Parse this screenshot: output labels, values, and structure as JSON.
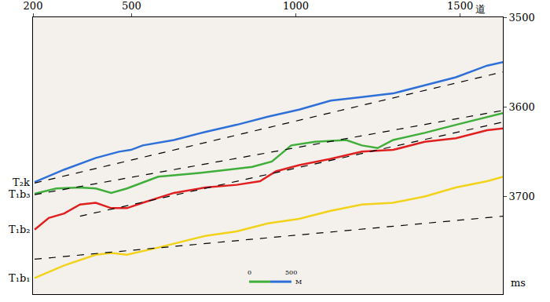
{
  "chart_data": {
    "type": "line",
    "x_label": "道",
    "y_label": "ms",
    "xlim": [
      200,
      1630
    ],
    "xticks": [
      200,
      500,
      1000,
      1500
    ],
    "ylim": [
      3809,
      3500
    ],
    "yticks": [
      3500,
      3600,
      3700
    ],
    "grid": false,
    "legend": false,
    "scale_bar": {
      "labels": [
        "0",
        "500"
      ],
      "unit": "M"
    },
    "series": [
      {
        "name": "T₂k",
        "color": "#2e6fd8",
        "line_style": "solid",
        "x": [
          205,
          295,
          391,
          462,
          498,
          534,
          629,
          724,
          820,
          915,
          1010,
          1106,
          1201,
          1296,
          1392,
          1487,
          1582,
          1630
        ],
        "values": [
          3684,
          3670,
          3657,
          3650,
          3648,
          3643,
          3637,
          3628,
          3620,
          3611,
          3603,
          3593,
          3589,
          3585,
          3576,
          3567,
          3554,
          3550
        ]
      },
      {
        "name": "T₁b₃",
        "color": "#3fae3a",
        "line_style": "solid",
        "x": [
          205,
          271,
          343,
          391,
          438,
          486,
          581,
          700,
          796,
          867,
          927,
          986,
          1058,
          1153,
          1201,
          1249,
          1296,
          1392,
          1487,
          1582,
          1630
        ],
        "values": [
          3697,
          3691,
          3690,
          3691,
          3696,
          3691,
          3678,
          3674,
          3670,
          3667,
          3661,
          3643,
          3639,
          3637,
          3643,
          3646,
          3637,
          3629,
          3620,
          3611,
          3607
        ]
      },
      {
        "name": "T₁b₂",
        "color": "#e02020",
        "line_style": "solid",
        "x": [
          205,
          248,
          295,
          343,
          391,
          438,
          486,
          534,
          629,
          724,
          820,
          891,
          939,
          1010,
          1106,
          1201,
          1296,
          1392,
          1487,
          1582,
          1630
        ],
        "values": [
          3737,
          3724,
          3719,
          3709,
          3707,
          3713,
          3713,
          3707,
          3696,
          3690,
          3687,
          3683,
          3672,
          3665,
          3658,
          3650,
          3648,
          3639,
          3635,
          3626,
          3624
        ]
      },
      {
        "name": "T₁b₁",
        "color": "#f2d21a",
        "line_style": "solid",
        "x": [
          205,
          295,
          391,
          438,
          486,
          581,
          724,
          820,
          915,
          1010,
          1106,
          1201,
          1296,
          1392,
          1487,
          1582,
          1630
        ],
        "values": [
          3791,
          3777,
          3765,
          3763,
          3765,
          3757,
          3744,
          3739,
          3730,
          3725,
          3716,
          3709,
          3707,
          3700,
          3690,
          3683,
          3678
        ]
      },
      {
        "color": "#000000",
        "line_style": "dash",
        "x": [
          205,
          1630
        ],
        "values": [
          3685,
          3561
        ]
      },
      {
        "color": "#000000",
        "line_style": "dash",
        "x": [
          205,
          1630
        ],
        "values": [
          3698,
          3604
        ]
      },
      {
        "color": "#000000",
        "line_style": "dash",
        "x": [
          343,
          1630
        ],
        "values": [
          3722,
          3617
        ]
      },
      {
        "color": "#000000",
        "line_style": "dash",
        "x": [
          205,
          1630
        ],
        "values": [
          3770,
          3722
        ]
      }
    ]
  }
}
